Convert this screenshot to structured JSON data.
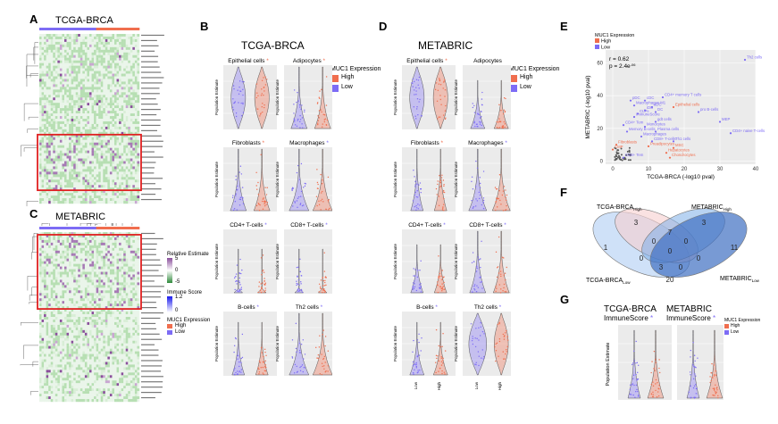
{
  "labels": {
    "A": "A",
    "B": "B",
    "C": "C",
    "D": "D",
    "E": "E",
    "F": "F",
    "G": "G"
  },
  "colors": {
    "high": "#f06e4e",
    "low": "#7d6cf5",
    "plot_bg": "#ebebeb",
    "heat_green": "#a7d8a6",
    "heat_purple": "#8a4f9c",
    "box_red": "#e02020",
    "venn_light": "#bfd7f5",
    "venn_mid": "#7eaee8",
    "venn_dark": "#3f6fc2",
    "venn_pink": "#f7cfcf"
  },
  "panelA": {
    "title": "TCGA-BRCA"
  },
  "panelC": {
    "title": "METABRIC",
    "legend_rel_title": "Relative Estimate",
    "legend_rel_ticks": [
      "5",
      "0",
      "-5"
    ],
    "legend_imm_title": "Immune Score",
    "legend_imm_ticks": [
      "1.2",
      "0"
    ],
    "legend_muc_title": "MUC1 Expression",
    "legend_muc_items": [
      "High",
      "Low"
    ]
  },
  "panelB": {
    "title": "TCGA-BRCA",
    "legend_title": "MUC1 Expression",
    "legend_items": [
      "High",
      "Low"
    ],
    "ylabel": "Population Estimate",
    "subplots": [
      {
        "name": "Epithelial cells",
        "star": "*",
        "star_color": "high"
      },
      {
        "name": "Adipocytes",
        "star": "*",
        "star_color": "high"
      },
      {
        "name": "Fibroblasts",
        "star": "*",
        "star_color": "high"
      },
      {
        "name": "Macrophages",
        "star": "*",
        "star_color": "low"
      },
      {
        "name": "CD4+ T-cells",
        "star": "*",
        "star_color": "low"
      },
      {
        "name": "CD8+ T-cells",
        "star": "*",
        "star_color": "low"
      },
      {
        "name": "B-cells",
        "star": "*",
        "star_color": "low"
      },
      {
        "name": "Th2 cells",
        "star": "*",
        "star_color": "low"
      }
    ]
  },
  "panelD": {
    "title": "METABRIC",
    "legend_title": "MUC1 Expression",
    "legend_items": [
      "High",
      "Low"
    ],
    "ylabel": "Population Estimate",
    "xticks": [
      "Low",
      "High"
    ],
    "subplots": [
      {
        "name": "Epithelial cells",
        "star": "*",
        "star_color": "high"
      },
      {
        "name": "Adipocytes",
        "star": "",
        "star_color": "high"
      },
      {
        "name": "Fibroblasts",
        "star": "*",
        "star_color": "high"
      },
      {
        "name": "Macrophages",
        "star": "*",
        "star_color": "low"
      },
      {
        "name": "CD4+ T-cells",
        "star": "*",
        "star_color": "low"
      },
      {
        "name": "CD8+ T-cells",
        "star": "*",
        "star_color": "low"
      },
      {
        "name": "B-cells",
        "star": "*",
        "star_color": "low"
      },
      {
        "name": "Th2 cells",
        "star": "*",
        "star_color": "low"
      }
    ]
  },
  "panelG": {
    "left_title": "TCGA-BRCA",
    "left_sub": "ImmuneScore",
    "right_title": "METABRIC",
    "right_sub": "ImmuneScore",
    "star": "*",
    "ylabel": "Population Estimate",
    "legend_title": "MUC1 Expression",
    "legend_items": [
      "High",
      "Low"
    ]
  },
  "panelF": {
    "labels": {
      "tcga_high": "TCGA-BRCA",
      "tcga_high_sub": "High",
      "metabric_high": "METABRIC",
      "metabric_high_sub": "High",
      "tcga_low": "TCGA-BRCA",
      "tcga_low_sub": "Low",
      "metabric_low": "METABRIC",
      "metabric_low_sub": "Low"
    },
    "numbers": [
      "3",
      "3",
      "7",
      "1",
      "0",
      "0",
      "11",
      "0",
      "0",
      "0",
      "3",
      "0",
      "20"
    ]
  },
  "chart_data": {
    "type": "scatter",
    "title": "",
    "legend_title": "MUC1 Expression",
    "legend_items": [
      "High",
      "Low"
    ],
    "annotation_r": "r = 0.62",
    "annotation_p": "p = 2.4e",
    "annotation_p_exp": "-06",
    "xlabel": "TCGA-BRCA (-log10 pval)",
    "ylabel": "METABRIC (-log10 pval)",
    "xlim": [
      -2,
      40
    ],
    "ylim": [
      -2,
      68
    ],
    "xticks": [
      0,
      10,
      20,
      30,
      40
    ],
    "yticks": [
      0,
      20,
      40,
      60
    ],
    "points": [
      {
        "label": "Th2 cells",
        "x": 37,
        "y": 62,
        "group": "low"
      },
      {
        "label": "CD4+ memory T cells",
        "x": 14,
        "y": 39,
        "group": "low"
      },
      {
        "label": "pDC",
        "x": 5,
        "y": 37,
        "group": "low"
      },
      {
        "label": "cDC",
        "x": 9,
        "y": 37,
        "group": "low"
      },
      {
        "label": "Macrophages M1",
        "x": 6,
        "y": 34,
        "group": "low"
      },
      {
        "label": "aDC",
        "x": 11,
        "y": 33,
        "group": "low"
      },
      {
        "label": "Epithelial cells",
        "x": 17,
        "y": 33,
        "group": "high"
      },
      {
        "label": "iDC",
        "x": 9,
        "y": 31,
        "group": "low"
      },
      {
        "label": "CLPs",
        "x": 7,
        "y": 29,
        "group": "low"
      },
      {
        "label": "DC",
        "x": 12,
        "y": 30,
        "group": "low"
      },
      {
        "label": "ImmuneScore",
        "x": 6,
        "y": 27,
        "group": "low"
      },
      {
        "label": "pro B-cells",
        "x": 24,
        "y": 30,
        "group": "low"
      },
      {
        "label": "gdt cells",
        "x": 12,
        "y": 24,
        "group": "low"
      },
      {
        "label": "CD4+ Tem",
        "x": 3,
        "y": 22,
        "group": "low"
      },
      {
        "label": "Monocytes",
        "x": 9,
        "y": 21,
        "group": "low"
      },
      {
        "label": "MEP",
        "x": 30,
        "y": 24,
        "group": "low"
      },
      {
        "label": "Memory B-cells",
        "x": 4,
        "y": 18,
        "group": "low"
      },
      {
        "label": "Plasma cells",
        "x": 12,
        "y": 18,
        "group": "low"
      },
      {
        "label": "Macrophages",
        "x": 8,
        "y": 15,
        "group": "low"
      },
      {
        "label": "CD4+ naive T-cells",
        "x": 33,
        "y": 17,
        "group": "low"
      },
      {
        "label": "CD8+ T-cells",
        "x": 11,
        "y": 12,
        "group": "low"
      },
      {
        "label": "Th1 cells",
        "x": 17,
        "y": 12,
        "group": "low"
      },
      {
        "label": "Fibroblasts",
        "x": 1,
        "y": 10,
        "group": "high"
      },
      {
        "label": "Preadipocytes",
        "x": 10,
        "y": 9,
        "group": "high"
      },
      {
        "label": "MSC",
        "x": 17,
        "y": 8,
        "group": "high"
      },
      {
        "label": "CMP",
        "x": 0,
        "y": 7,
        "group": "high"
      },
      {
        "label": "Hepatocytes",
        "x": 15,
        "y": 5,
        "group": "high"
      },
      {
        "label": "Chondrocytes",
        "x": 16,
        "y": 2,
        "group": "high"
      },
      {
        "label": "CD8+ Tem",
        "x": 3,
        "y": 2,
        "group": "low"
      }
    ]
  }
}
